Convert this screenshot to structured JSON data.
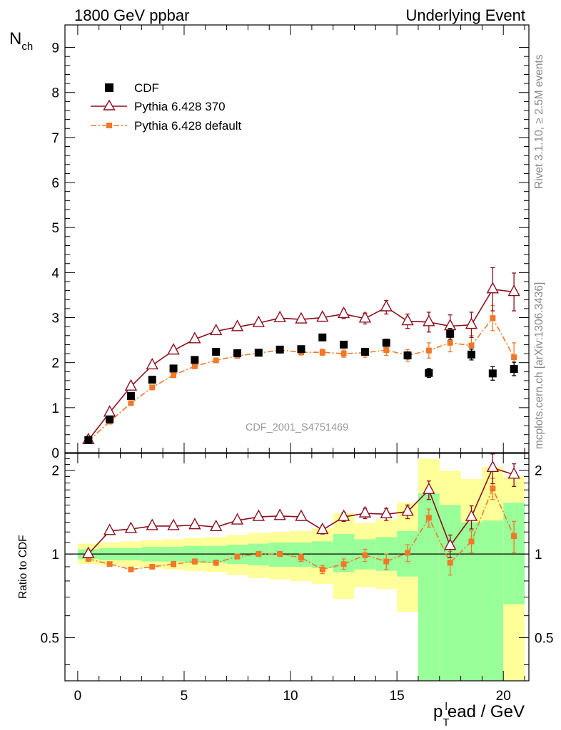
{
  "header": {
    "left_label": "1800 GeV ppbar",
    "right_label": "Underlying Event"
  },
  "side_labels": {
    "rivet": "Rivet 3.1.10, ≥ 2.5M events",
    "mcplots": "mcplots.cern.ch [arXiv:1306.3436]"
  },
  "analysis_label": "CDF_2001_S4751469",
  "colors": {
    "cdf": "#000000",
    "pythia370": "#8b0f1e",
    "pythia_default": "#f07828",
    "band_green": "#99ff99",
    "band_yellow": "#ffff99"
  },
  "chart_data": [
    {
      "type": "scatter",
      "panel": "main",
      "ylabel_main": "N",
      "ylabel_sub": "ch",
      "ylim": [
        0,
        9.5
      ],
      "xlim": [
        -0.6,
        21.2
      ],
      "yticks": [
        "0",
        "1",
        "2",
        "3",
        "4",
        "5",
        "6",
        "7",
        "8",
        "9"
      ],
      "x": [
        0.5,
        1.5,
        2.5,
        3.5,
        4.5,
        5.5,
        6.5,
        7.5,
        8.5,
        9.5,
        10.5,
        11.5,
        12.5,
        13.5,
        14.5,
        15.5,
        16.5,
        17.5,
        18.5,
        19.5,
        20.5
      ],
      "series": [
        {
          "name": "CDF",
          "style": "square",
          "values": [
            0.28,
            0.74,
            1.26,
            1.62,
            1.87,
            2.06,
            2.24,
            2.21,
            2.22,
            2.29,
            2.3,
            2.56,
            2.4,
            2.24,
            2.44,
            2.16,
            1.77,
            2.64,
            2.18,
            1.76,
            1.86
          ],
          "errors": [
            0.02,
            0.03,
            0.03,
            0.03,
            0.04,
            0.04,
            0.04,
            0.04,
            0.04,
            0.05,
            0.05,
            0.05,
            0.06,
            0.07,
            0.08,
            0.08,
            0.1,
            0.12,
            0.12,
            0.15,
            0.15
          ]
        },
        {
          "name": "Pythia 6.428 370",
          "style": "triangle-line",
          "values": [
            0.28,
            0.89,
            1.47,
            1.94,
            2.27,
            2.52,
            2.7,
            2.79,
            2.88,
            2.99,
            2.96,
            3.0,
            3.08,
            2.98,
            3.23,
            2.92,
            2.9,
            2.81,
            2.84,
            3.63,
            3.57
          ],
          "errors": [
            0.01,
            0.02,
            0.02,
            0.03,
            0.03,
            0.03,
            0.04,
            0.04,
            0.05,
            0.06,
            0.07,
            0.08,
            0.1,
            0.12,
            0.15,
            0.16,
            0.22,
            0.25,
            0.28,
            0.48,
            0.42
          ]
        },
        {
          "name": "Pythia 6.428 default",
          "style": "dot-dash",
          "values": [
            0.26,
            0.69,
            1.1,
            1.45,
            1.72,
            1.92,
            2.05,
            2.15,
            2.21,
            2.28,
            2.23,
            2.23,
            2.2,
            2.22,
            2.28,
            2.16,
            2.27,
            2.44,
            2.38,
            2.99,
            2.12
          ],
          "errors": [
            0.01,
            0.02,
            0.02,
            0.02,
            0.03,
            0.03,
            0.03,
            0.04,
            0.05,
            0.05,
            0.06,
            0.07,
            0.08,
            0.1,
            0.12,
            0.13,
            0.17,
            0.2,
            0.22,
            0.28,
            0.32
          ]
        }
      ]
    },
    {
      "type": "scatter",
      "panel": "ratio",
      "ylabel": "Ratio to CDF",
      "xlabel": "p",
      "xlabel_sub": "T",
      "xlabel_sup": "l",
      "xlabel_rest": "ead / GeV",
      "ylim": [
        0.35,
        2.3
      ],
      "xticks": [
        "0",
        "5",
        "10",
        "15",
        "20"
      ],
      "yticks": [
        "0.5",
        "1",
        "2"
      ],
      "x": [
        0.5,
        1.5,
        2.5,
        3.5,
        4.5,
        5.5,
        6.5,
        7.5,
        8.5,
        9.5,
        10.5,
        11.5,
        12.5,
        13.5,
        14.5,
        15.5,
        16.5,
        17.5,
        18.5,
        19.5,
        20.5
      ],
      "bands": {
        "green_low": [
          0.96,
          0.95,
          0.95,
          0.94,
          0.94,
          0.93,
          0.93,
          0.92,
          0.91,
          0.9,
          0.9,
          0.89,
          0.86,
          0.88,
          0.87,
          0.83,
          0.35,
          0.35,
          0.35,
          0.35,
          0.66
        ],
        "green_high": [
          1.04,
          1.05,
          1.05,
          1.06,
          1.06,
          1.07,
          1.07,
          1.08,
          1.09,
          1.1,
          1.1,
          1.11,
          1.18,
          1.13,
          1.15,
          1.21,
          1.65,
          1.5,
          1.3,
          1.32,
          1.53
        ],
        "yellow_low": [
          0.92,
          0.91,
          0.9,
          0.89,
          0.88,
          0.87,
          0.86,
          0.84,
          0.82,
          0.81,
          0.8,
          0.78,
          0.69,
          0.76,
          0.75,
          0.62,
          0.35,
          0.35,
          0.35,
          0.35,
          0.35
        ],
        "yellow_high": [
          1.09,
          1.1,
          1.11,
          1.12,
          1.13,
          1.14,
          1.15,
          1.17,
          1.19,
          1.2,
          1.21,
          1.24,
          1.4,
          1.29,
          1.33,
          1.53,
          2.2,
          1.99,
          1.86,
          2.06,
          1.9
        ]
      },
      "series": [
        {
          "name": "Pythia 6.428 370",
          "values": [
            1.0,
            1.21,
            1.23,
            1.26,
            1.26,
            1.27,
            1.25,
            1.32,
            1.36,
            1.37,
            1.36,
            1.22,
            1.36,
            1.4,
            1.39,
            1.42,
            1.7,
            1.07,
            1.36,
            2.04,
            1.93
          ],
          "errors": [
            0.01,
            0.02,
            0.02,
            0.02,
            0.02,
            0.02,
            0.02,
            0.03,
            0.03,
            0.03,
            0.04,
            0.04,
            0.05,
            0.06,
            0.07,
            0.08,
            0.13,
            0.1,
            0.13,
            0.25,
            0.18
          ]
        },
        {
          "name": "Pythia 6.428 default",
          "values": [
            0.96,
            0.92,
            0.88,
            0.9,
            0.92,
            0.94,
            0.93,
            0.98,
            1.0,
            1.0,
            0.97,
            0.88,
            0.92,
            0.99,
            0.94,
            1.01,
            1.35,
            0.93,
            1.11,
            1.72,
            1.16
          ],
          "errors": [
            0.01,
            0.01,
            0.01,
            0.01,
            0.02,
            0.02,
            0.02,
            0.02,
            0.02,
            0.02,
            0.03,
            0.03,
            0.04,
            0.05,
            0.06,
            0.07,
            0.1,
            0.09,
            0.1,
            0.15,
            0.15
          ]
        }
      ]
    }
  ]
}
